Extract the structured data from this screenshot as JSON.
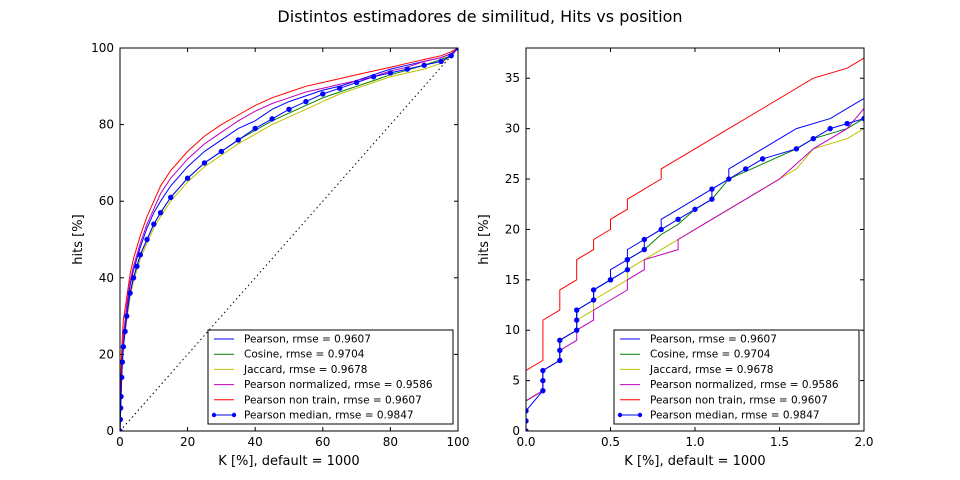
{
  "title": "Distintos estimadores de similitud, Hits vs position",
  "chart_data": [
    {
      "type": "line",
      "xlabel": "K [%], default = 1000",
      "ylabel": "hits [%]",
      "xlim": [
        0,
        100
      ],
      "ylim": [
        0,
        100
      ],
      "xticks": [
        "0",
        "20",
        "40",
        "60",
        "80",
        "100"
      ],
      "yticks": [
        "0",
        "20",
        "40",
        "60",
        "80",
        "100"
      ],
      "grid": false,
      "legend_position": "lower right",
      "reference_line": {
        "style": "dotted",
        "color": "#000000",
        "x": [
          0,
          100
        ],
        "y": [
          0,
          100
        ]
      },
      "series": [
        {
          "name": "Pearson, rmse = 0.9607",
          "color": "#0000ff",
          "marker": "none",
          "x": [
            0,
            0.1,
            0.2,
            0.3,
            0.5,
            0.7,
            1,
            1.5,
            2,
            3,
            4,
            5,
            6,
            8,
            10,
            12,
            15,
            20,
            25,
            30,
            35,
            40,
            45,
            50,
            55,
            60,
            65,
            70,
            75,
            80,
            85,
            90,
            95,
            98,
            100
          ],
          "y": [
            0,
            3,
            6,
            10,
            16,
            20,
            24,
            28,
            32,
            38,
            42,
            45,
            48,
            53,
            57,
            60,
            64,
            69,
            73,
            76,
            79,
            81,
            84,
            86,
            87.5,
            89,
            90,
            91.5,
            93,
            94.5,
            95.5,
            96.5,
            97.5,
            98.5,
            100
          ]
        },
        {
          "name": "Cosine, rmse = 0.9704",
          "color": "#008000",
          "marker": "none",
          "x": [
            0,
            0.1,
            0.2,
            0.3,
            0.5,
            0.7,
            1,
            1.5,
            2,
            3,
            4,
            5,
            6,
            8,
            10,
            12,
            15,
            20,
            25,
            30,
            35,
            40,
            45,
            50,
            55,
            60,
            65,
            70,
            75,
            80,
            85,
            90,
            95,
            98,
            100
          ],
          "y": [
            0,
            3,
            6,
            9,
            14,
            18,
            22,
            26,
            30,
            36,
            40,
            43,
            46,
            50,
            54,
            57,
            61,
            66,
            70,
            73,
            76,
            78.5,
            81,
            83,
            85,
            87,
            88.5,
            90,
            91.5,
            93,
            94.2,
            95.5,
            97,
            98,
            100
          ]
        },
        {
          "name": "Jaccard, rmse = 0.9678",
          "color": "#bfbf00",
          "marker": "none",
          "x": [
            0,
            0.1,
            0.2,
            0.3,
            0.5,
            0.7,
            1,
            1.5,
            2,
            3,
            4,
            5,
            6,
            8,
            10,
            12,
            15,
            20,
            25,
            30,
            35,
            40,
            45,
            50,
            55,
            60,
            65,
            70,
            75,
            80,
            85,
            90,
            95,
            98,
            100
          ],
          "y": [
            0,
            3,
            6,
            9,
            14,
            18,
            22,
            26,
            29,
            35,
            39,
            42,
            45,
            49,
            53,
            56,
            60,
            65,
            69,
            72,
            75,
            77.5,
            80,
            82,
            84,
            86,
            88,
            89.5,
            91,
            92.5,
            93.5,
            94.5,
            96,
            98,
            100
          ]
        },
        {
          "name": "Pearson normalized, rmse = 0.9586",
          "color": "#bf00bf",
          "marker": "none",
          "x": [
            0,
            0.1,
            0.2,
            0.3,
            0.5,
            0.7,
            1,
            1.5,
            2,
            3,
            4,
            5,
            6,
            8,
            10,
            12,
            15,
            20,
            25,
            30,
            35,
            40,
            45,
            50,
            55,
            60,
            65,
            70,
            75,
            80,
            85,
            90,
            95,
            98,
            100
          ],
          "y": [
            0,
            3,
            6,
            9,
            15,
            20,
            25,
            29,
            33,
            39,
            43,
            46,
            49,
            54,
            58,
            62,
            66,
            71,
            75,
            78,
            81,
            83.5,
            85.5,
            87,
            88.5,
            89.5,
            90.5,
            91.5,
            92.5,
            94,
            95,
            96.5,
            97.5,
            98.5,
            100
          ]
        },
        {
          "name": "Pearson non train, rmse = 0.9607",
          "color": "#ff0000",
          "marker": "none",
          "x": [
            0,
            0.1,
            0.2,
            0.3,
            0.5,
            0.7,
            1,
            1.5,
            2,
            3,
            4,
            5,
            6,
            8,
            10,
            12,
            15,
            20,
            25,
            30,
            35,
            40,
            45,
            50,
            55,
            60,
            65,
            70,
            75,
            80,
            85,
            90,
            95,
            98,
            100
          ],
          "y": [
            0,
            6,
            11,
            15,
            21,
            25,
            29,
            32,
            35,
            41,
            45,
            48,
            51,
            56,
            60,
            64,
            68,
            73,
            77,
            80,
            82.5,
            85,
            87,
            88.5,
            90,
            91,
            92,
            93,
            94,
            95,
            96,
            97,
            98,
            99,
            100
          ]
        },
        {
          "name": "Pearson median, rmse = 0.9847",
          "color": "#0000ff",
          "marker": "dot",
          "x": [
            0,
            0.1,
            0.2,
            0.3,
            0.5,
            0.7,
            1,
            1.5,
            2,
            3,
            4,
            5,
            6,
            8,
            10,
            12,
            15,
            20,
            25,
            30,
            35,
            40,
            45,
            50,
            55,
            60,
            65,
            70,
            75,
            80,
            85,
            90,
            95,
            98,
            100
          ],
          "y": [
            0,
            3,
            6,
            9,
            14,
            18,
            22,
            26,
            30,
            36,
            40,
            43,
            46,
            50,
            54,
            57,
            61,
            66,
            70,
            73,
            76,
            79,
            81.5,
            84,
            86,
            88,
            89.5,
            91,
            92.5,
            93.5,
            94.5,
            95.5,
            96.5,
            98,
            100
          ]
        }
      ]
    },
    {
      "type": "line",
      "xlabel": "K [%], default = 1000",
      "ylabel": "hits [%]",
      "xlim": [
        0,
        2.0
      ],
      "ylim": [
        0,
        38
      ],
      "xticks": [
        "0.0",
        "0.5",
        "1.0",
        "1.5",
        "2.0"
      ],
      "yticks": [
        "0",
        "5",
        "10",
        "15",
        "20",
        "25",
        "30",
        "35"
      ],
      "grid": false,
      "legend_position": "lower right",
      "series": [
        {
          "name": "Pearson, rmse = 0.9607",
          "color": "#0000ff",
          "marker": "none",
          "x": [
            0,
            0,
            0.1,
            0.1,
            0.2,
            0.2,
            0.3,
            0.3,
            0.4,
            0.4,
            0.5,
            0.5,
            0.6,
            0.6,
            0.7,
            0.7,
            0.8,
            0.8,
            0.9,
            1.0,
            1.1,
            1.1,
            1.2,
            1.2,
            1.4,
            1.6,
            1.8,
            2.0
          ],
          "y": [
            0,
            3,
            4,
            6,
            7,
            9,
            10,
            12,
            13,
            14,
            15,
            16,
            17,
            18,
            19,
            19,
            20,
            21,
            22,
            23,
            24,
            24,
            25,
            26,
            28,
            30,
            31,
            33
          ]
        },
        {
          "name": "Cosine, rmse = 0.9704",
          "color": "#008000",
          "marker": "none",
          "x": [
            0,
            0,
            0.1,
            0.1,
            0.2,
            0.2,
            0.3,
            0.3,
            0.4,
            0.4,
            0.5,
            0.5,
            0.6,
            0.6,
            0.7,
            0.8,
            0.9,
            1.0,
            1.1,
            1.2,
            1.4,
            1.6,
            1.7,
            1.9,
            2.0
          ],
          "y": [
            0,
            3,
            4,
            6,
            7,
            9,
            10,
            12,
            13,
            14,
            15,
            15,
            16,
            17,
            18,
            19.5,
            20.5,
            22,
            23,
            25,
            26.5,
            28,
            29,
            30,
            31
          ]
        },
        {
          "name": "Jaccard, rmse = 0.9678",
          "color": "#bfbf00",
          "marker": "none",
          "x": [
            0,
            0,
            0.1,
            0.1,
            0.2,
            0.2,
            0.3,
            0.3,
            0.4,
            0.4,
            0.5,
            0.5,
            0.6,
            0.6,
            0.7,
            0.8,
            1.0,
            1.2,
            1.4,
            1.6,
            1.7,
            1.9,
            2.0
          ],
          "y": [
            0,
            3,
            4,
            6,
            7,
            9,
            10,
            11,
            12,
            13,
            14,
            14,
            15,
            16,
            17,
            18,
            20,
            22,
            24,
            26,
            28,
            29,
            30
          ]
        },
        {
          "name": "Pearson normalized, rmse = 0.9586",
          "color": "#bf00bf",
          "marker": "none",
          "x": [
            0,
            0,
            0.1,
            0.1,
            0.2,
            0.2,
            0.3,
            0.3,
            0.4,
            0.4,
            0.5,
            0.5,
            0.6,
            0.6,
            0.7,
            0.7,
            0.9,
            0.9,
            1.1,
            1.3,
            1.5,
            1.7,
            1.9,
            2.0
          ],
          "y": [
            0,
            3,
            4,
            6,
            7,
            8,
            9,
            10,
            11,
            12,
            13,
            13,
            14,
            15,
            16,
            17,
            18,
            19,
            21,
            23,
            25,
            28,
            30,
            32
          ]
        },
        {
          "name": "Pearson non train, rmse = 0.9607",
          "color": "#ff0000",
          "marker": "none",
          "x": [
            0,
            0.1,
            0.1,
            0.2,
            0.2,
            0.3,
            0.3,
            0.4,
            0.4,
            0.5,
            0.5,
            0.6,
            0.6,
            0.7,
            0.8,
            0.8,
            1.0,
            1.2,
            1.4,
            1.7,
            1.9,
            2.0
          ],
          "y": [
            6,
            7,
            11,
            12,
            14,
            15,
            17,
            18,
            19,
            20,
            21,
            22,
            23,
            24,
            25,
            26,
            28,
            30,
            32,
            35,
            36,
            37
          ]
        },
        {
          "name": "Pearson median, rmse = 0.9847",
          "color": "#0000ff",
          "marker": "dot",
          "x": [
            0,
            0,
            0,
            0.1,
            0.1,
            0.1,
            0.2,
            0.2,
            0.2,
            0.3,
            0.3,
            0.3,
            0.4,
            0.4,
            0.5,
            0.5,
            0.6,
            0.6,
            0.6,
            0.7,
            0.7,
            0.8,
            0.9,
            1.0,
            1.1,
            1.1,
            1.2,
            1.3,
            1.4,
            1.6,
            1.7,
            1.8,
            1.9,
            2.0
          ],
          "y": [
            0,
            1,
            2,
            4,
            5,
            6,
            7,
            8,
            9,
            10,
            11,
            12,
            13,
            14,
            15,
            15,
            16,
            17,
            17,
            18,
            19,
            20,
            21,
            22,
            23,
            24,
            25,
            26,
            27,
            28,
            29,
            30,
            30.5,
            31
          ]
        }
      ]
    }
  ]
}
